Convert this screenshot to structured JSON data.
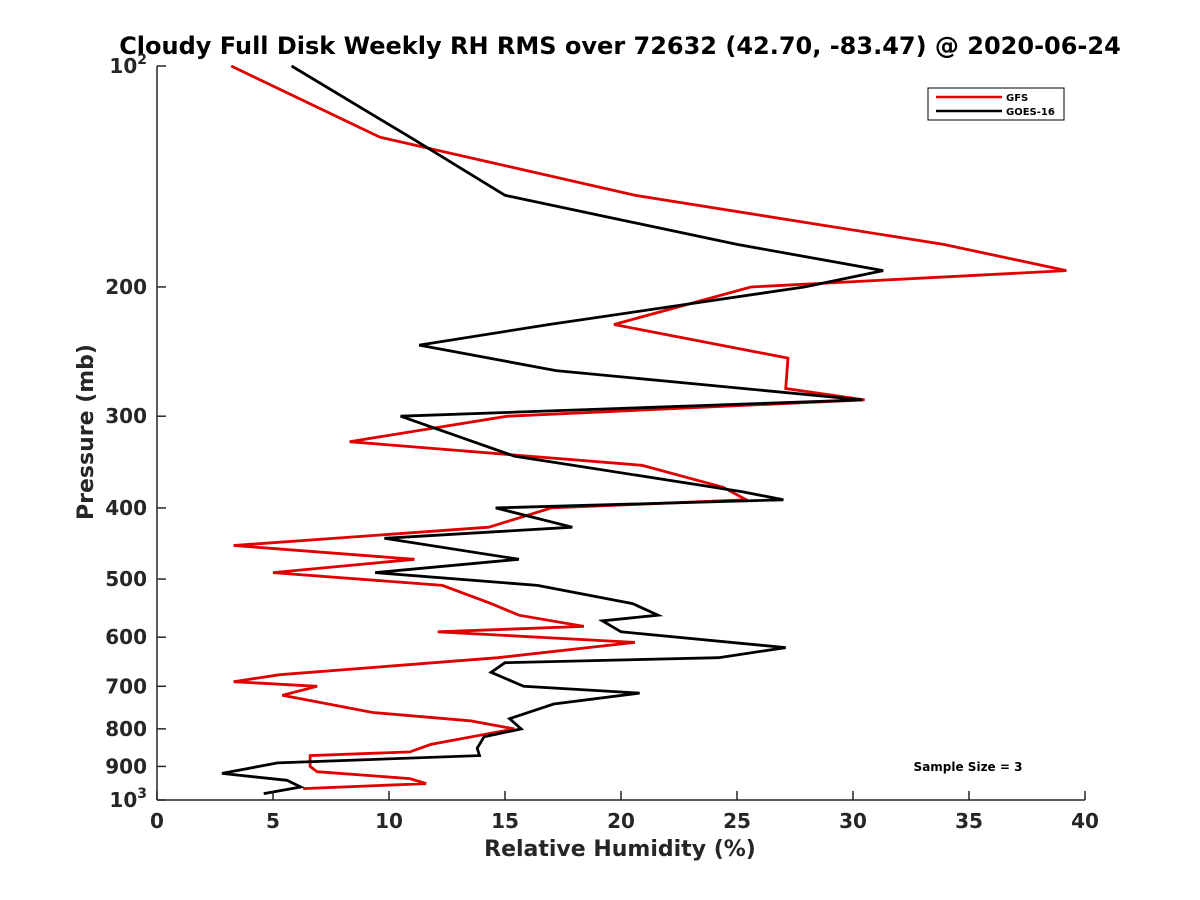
{
  "chart_data": {
    "type": "line",
    "title": "Cloudy Full Disk Weekly RH RMS over 72632 (42.70, -83.47) @ 2020-06-24",
    "xlabel": "Relative Humidity (%)",
    "ylabel": "Pressure (mb)",
    "xlim": [
      0,
      40
    ],
    "ylim": [
      100,
      1000
    ],
    "y_scale": "log",
    "y_reversed": true,
    "x_ticks": [
      0,
      5,
      10,
      15,
      20,
      25,
      30,
      35,
      40
    ],
    "y_ticks": [
      {
        "value": 100,
        "base": "10",
        "exp": "2"
      },
      {
        "value": 200,
        "label": "200"
      },
      {
        "value": 300,
        "label": "300"
      },
      {
        "value": 400,
        "label": "400"
      },
      {
        "value": 500,
        "label": "500"
      },
      {
        "value": 600,
        "label": "600"
      },
      {
        "value": 700,
        "label": "700"
      },
      {
        "value": 800,
        "label": "800"
      },
      {
        "value": 900,
        "label": "900"
      },
      {
        "value": 1000,
        "base": "10",
        "exp": "3"
      }
    ],
    "legend": {
      "placement": "top-right"
    },
    "annotation": "Sample Size = 3",
    "series": [
      {
        "name": "GFS",
        "color": "#e00000",
        "points": [
          [
            3.2,
            100
          ],
          [
            9.6,
            125
          ],
          [
            20.6,
            150
          ],
          [
            33.9,
            175
          ],
          [
            39.2,
            190
          ],
          [
            25.6,
            200
          ],
          [
            19.7,
            225
          ],
          [
            27.2,
            250
          ],
          [
            27.1,
            275
          ],
          [
            30.5,
            285
          ],
          [
            15.1,
            300
          ],
          [
            8.3,
            325
          ],
          [
            20.9,
            350
          ],
          [
            24.4,
            375
          ],
          [
            25.4,
            390
          ],
          [
            17.0,
            400
          ],
          [
            14.3,
            425
          ],
          [
            3.3,
            450
          ],
          [
            11.1,
            470
          ],
          [
            5.0,
            490
          ],
          [
            12.3,
            510
          ],
          [
            14.4,
            540
          ],
          [
            15.6,
            560
          ],
          [
            18.4,
            580
          ],
          [
            12.1,
            590
          ],
          [
            20.6,
            610
          ],
          [
            14.7,
            640
          ],
          [
            5.3,
            675
          ],
          [
            3.3,
            690
          ],
          [
            6.9,
            700
          ],
          [
            5.4,
            720
          ],
          [
            9.3,
            760
          ],
          [
            13.5,
            780
          ],
          [
            15.4,
            800
          ],
          [
            11.8,
            840
          ],
          [
            10.9,
            860
          ],
          [
            6.6,
            870
          ],
          [
            6.6,
            900
          ],
          [
            6.9,
            915
          ],
          [
            10.9,
            935
          ],
          [
            11.6,
            950
          ],
          [
            6.3,
            965
          ]
        ]
      },
      {
        "name": "GOES-16",
        "color": "#000000",
        "points": [
          [
            5.8,
            100
          ],
          [
            10.9,
            125
          ],
          [
            15.0,
            150
          ],
          [
            25.0,
            175
          ],
          [
            31.3,
            190
          ],
          [
            27.9,
            200
          ],
          [
            16.9,
            225
          ],
          [
            11.3,
            240
          ],
          [
            17.2,
            260
          ],
          [
            30.4,
            285
          ],
          [
            10.5,
            300
          ],
          [
            15.4,
            340
          ],
          [
            25.2,
            380
          ],
          [
            27.0,
            390
          ],
          [
            14.6,
            400
          ],
          [
            17.9,
            425
          ],
          [
            9.8,
            440
          ],
          [
            15.6,
            470
          ],
          [
            9.4,
            490
          ],
          [
            16.4,
            510
          ],
          [
            20.5,
            540
          ],
          [
            21.6,
            560
          ],
          [
            19.2,
            570
          ],
          [
            20.0,
            590
          ],
          [
            27.1,
            620
          ],
          [
            24.2,
            640
          ],
          [
            15.0,
            650
          ],
          [
            14.4,
            670
          ],
          [
            15.8,
            700
          ],
          [
            20.8,
            715
          ],
          [
            17.1,
            740
          ],
          [
            15.2,
            775
          ],
          [
            15.7,
            800
          ],
          [
            14.1,
            820
          ],
          [
            13.8,
            850
          ],
          [
            13.9,
            870
          ],
          [
            5.2,
            890
          ],
          [
            2.8,
            920
          ],
          [
            5.6,
            940
          ],
          [
            6.2,
            960
          ],
          [
            4.6,
            980
          ]
        ]
      }
    ]
  }
}
